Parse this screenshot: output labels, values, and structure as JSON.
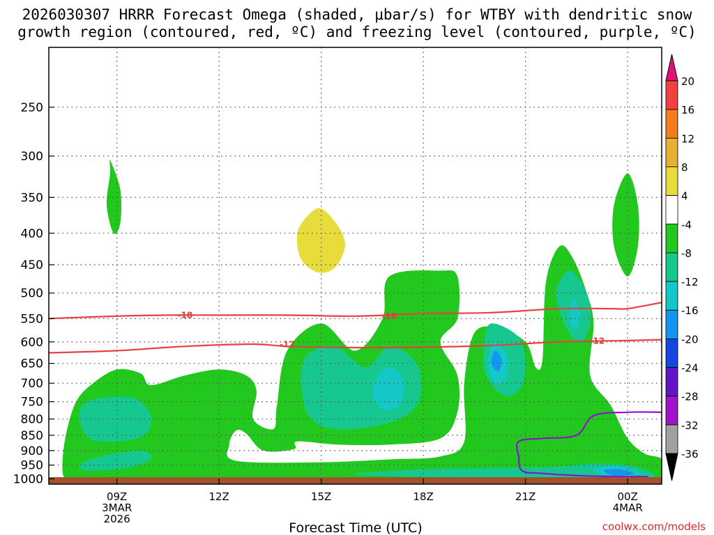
{
  "title": {
    "line1": "2026030307 HRRR Forecast Omega (shaded, μbar/s) for WTBY with dendritic snow",
    "line2": "growth region (contoured, red, ºC) and freezing level (contoured, purple, ºC)"
  },
  "credit": "coolwx.com/models",
  "chart_data": {
    "type": "time-height cross section",
    "xlabel": "Forecast Time (UTC)",
    "ylabel": "",
    "x_ticks": [
      {
        "hour": 9,
        "label": "09Z",
        "sub1": "3MAR",
        "sub2": "2026"
      },
      {
        "hour": 12,
        "label": "12Z",
        "sub1": "",
        "sub2": ""
      },
      {
        "hour": 15,
        "label": "15Z",
        "sub1": "",
        "sub2": ""
      },
      {
        "hour": 18,
        "label": "18Z",
        "sub1": "",
        "sub2": ""
      },
      {
        "hour": 21,
        "label": "21Z",
        "sub1": "",
        "sub2": ""
      },
      {
        "hour": 24,
        "label": "00Z",
        "sub1": "4MAR",
        "sub2": ""
      }
    ],
    "xlim": [
      7.0,
      25.0
    ],
    "y_ticks": [
      250,
      300,
      350,
      400,
      450,
      500,
      550,
      600,
      650,
      700,
      750,
      800,
      850,
      900,
      950,
      1000
    ],
    "ylim": [
      200,
      1020
    ],
    "y_scale": "log",
    "grid": true,
    "colorbar": {
      "levels": [
        20,
        16,
        12,
        8,
        4,
        -4,
        -8,
        -12,
        -16,
        -20,
        -24,
        -28,
        -32,
        -36
      ],
      "colors": [
        "#e0127a",
        "#f04040",
        "#f07d1e",
        "#e8b030",
        "#e8dc3c",
        "#ffffff",
        "#22c81e",
        "#16c890",
        "#14c8c8",
        "#1496f0",
        "#1446e0",
        "#6414c8",
        "#a014c8",
        "#a0a0a0",
        "#000000"
      ]
    },
    "contours": [
      {
        "name": "dgz-top",
        "label": "-18",
        "color": "#e84040",
        "points": [
          [
            7.0,
            550
          ],
          [
            9.0,
            545
          ],
          [
            10.5,
            543
          ],
          [
            12.0,
            543
          ],
          [
            14.0,
            543
          ],
          [
            16.0,
            545
          ],
          [
            18.0,
            540
          ],
          [
            20.0,
            538
          ],
          [
            22.0,
            530
          ],
          [
            23.5,
            530
          ],
          [
            24.0,
            530
          ],
          [
            25.0,
            518
          ]
        ],
        "label_at": [
          [
            11.0,
            543
          ],
          [
            17.0,
            545
          ]
        ]
      },
      {
        "name": "dgz-bottom",
        "label": "-12",
        "color": "#e84040",
        "points": [
          [
            7.0,
            625
          ],
          [
            9.0,
            620
          ],
          [
            11.0,
            610
          ],
          [
            13.0,
            605
          ],
          [
            14.0,
            610
          ],
          [
            16.0,
            613
          ],
          [
            18.0,
            612
          ],
          [
            20.0,
            608
          ],
          [
            22.0,
            600
          ],
          [
            24.0,
            597
          ],
          [
            25.0,
            595
          ]
        ],
        "label_at": [
          [
            14.0,
            606
          ],
          [
            23.1,
            598
          ]
        ]
      },
      {
        "name": "freezing-level",
        "label": "0",
        "color": "#8b14c8",
        "points": [
          [
            25.0,
            780
          ],
          [
            24.0,
            780
          ],
          [
            23.0,
            790
          ],
          [
            22.5,
            850
          ],
          [
            21.5,
            860
          ],
          [
            20.8,
            870
          ],
          [
            20.8,
            920
          ],
          [
            20.9,
            970
          ],
          [
            21.5,
            980
          ],
          [
            23.0,
            990
          ],
          [
            24.6,
            992
          ]
        ],
        "label_at": []
      }
    ],
    "omega_regions": [
      {
        "level": 4,
        "color": "#e8dc3c",
        "points": [
          [
            15.0,
            365
          ],
          [
            15.5,
            390
          ],
          [
            15.7,
            420
          ],
          [
            15.4,
            455
          ],
          [
            14.9,
            463
          ],
          [
            14.4,
            440
          ],
          [
            14.3,
            400
          ],
          [
            14.6,
            375
          ]
        ]
      },
      {
        "level": -4,
        "color": "#22c81e",
        "points": [
          [
            8.8,
            305
          ],
          [
            9.1,
            340
          ],
          [
            9.1,
            385
          ],
          [
            8.9,
            400
          ],
          [
            8.7,
            360
          ],
          [
            8.8,
            320
          ]
        ]
      },
      {
        "level": -4,
        "color": "#22c81e",
        "points": [
          [
            24.0,
            320
          ],
          [
            24.3,
            360
          ],
          [
            24.3,
            420
          ],
          [
            24.0,
            470
          ],
          [
            23.6,
            420
          ],
          [
            23.6,
            360
          ]
        ]
      },
      {
        "level": -4,
        "color": "#22c81e",
        "points": [
          [
            7.5,
            1000
          ],
          [
            7.4,
            950
          ],
          [
            7.5,
            850
          ],
          [
            7.8,
            750
          ],
          [
            8.3,
            700
          ],
          [
            9.0,
            665
          ],
          [
            9.7,
            675
          ],
          [
            10.0,
            705
          ],
          [
            11.0,
            680
          ],
          [
            12.0,
            665
          ],
          [
            12.8,
            680
          ],
          [
            13.1,
            720
          ],
          [
            13.0,
            800
          ],
          [
            13.6,
            830
          ],
          [
            13.7,
            760
          ],
          [
            14.0,
            620
          ],
          [
            15.0,
            560
          ],
          [
            16.0,
            620
          ],
          [
            16.8,
            550
          ],
          [
            17.0,
            470
          ],
          [
            18.5,
            460
          ],
          [
            19.0,
            470
          ],
          [
            19.0,
            550
          ],
          [
            18.5,
            600
          ],
          [
            19.0,
            680
          ],
          [
            19.0,
            780
          ],
          [
            18.5,
            860
          ],
          [
            17.0,
            880
          ],
          [
            15.5,
            880
          ],
          [
            14.3,
            870
          ],
          [
            14.2,
            895
          ],
          [
            13.3,
            900
          ],
          [
            12.8,
            845
          ],
          [
            12.5,
            835
          ],
          [
            12.3,
            880
          ],
          [
            12.5,
            935
          ],
          [
            15.0,
            940
          ],
          [
            17.0,
            930
          ],
          [
            18.5,
            920
          ],
          [
            19.2,
            870
          ],
          [
            19.2,
            700
          ],
          [
            19.5,
            580
          ],
          [
            20.2,
            570
          ],
          [
            21.0,
            600
          ],
          [
            21.3,
            660
          ],
          [
            21.5,
            640
          ],
          [
            21.6,
            480
          ],
          [
            22.0,
            420
          ],
          [
            22.4,
            440
          ],
          [
            22.8,
            500
          ],
          [
            23.0,
            560
          ],
          [
            22.9,
            680
          ],
          [
            23.5,
            760
          ],
          [
            24.0,
            860
          ],
          [
            24.5,
            910
          ],
          [
            25.0,
            930
          ],
          [
            25.0,
            1000
          ],
          [
            24.6,
            1000
          ],
          [
            21.5,
            1000
          ],
          [
            16.0,
            1000
          ],
          [
            12.0,
            1000
          ],
          [
            8.0,
            1000
          ]
        ]
      },
      {
        "level": -8,
        "color": "#16c890",
        "points": [
          [
            8.0,
            760
          ],
          [
            8.5,
            740
          ],
          [
            9.5,
            740
          ],
          [
            10.0,
            790
          ],
          [
            9.8,
            850
          ],
          [
            9.0,
            870
          ],
          [
            8.2,
            860
          ],
          [
            7.9,
            800
          ]
        ]
      },
      {
        "level": -8,
        "color": "#16c890",
        "points": [
          [
            7.9,
            950
          ],
          [
            8.5,
            920
          ],
          [
            9.7,
            900
          ],
          [
            10.0,
            930
          ],
          [
            9.3,
            960
          ],
          [
            8.2,
            970
          ]
        ]
      },
      {
        "level": -8,
        "color": "#16c890",
        "points": [
          [
            14.5,
            640
          ],
          [
            15.4,
            610
          ],
          [
            16.3,
            660
          ],
          [
            17.0,
            610
          ],
          [
            17.8,
            650
          ],
          [
            17.9,
            740
          ],
          [
            17.3,
            800
          ],
          [
            16.0,
            830
          ],
          [
            15.0,
            820
          ],
          [
            14.5,
            760
          ]
        ]
      },
      {
        "level": -8,
        "color": "#16c890",
        "points": [
          [
            20.0,
            560
          ],
          [
            20.8,
            590
          ],
          [
            21.0,
            660
          ],
          [
            20.8,
            720
          ],
          [
            20.3,
            730
          ],
          [
            19.8,
            670
          ],
          [
            19.8,
            600
          ]
        ]
      },
      {
        "level": -8,
        "color": "#16c890",
        "points": [
          [
            22.3,
            460
          ],
          [
            22.8,
            500
          ],
          [
            22.9,
            560
          ],
          [
            22.6,
            600
          ],
          [
            22.2,
            570
          ],
          [
            21.9,
            500
          ]
        ]
      },
      {
        "level": -8,
        "color": "#16c890",
        "points": [
          [
            16.0,
            980
          ],
          [
            18.0,
            965
          ],
          [
            20.0,
            960
          ],
          [
            22.0,
            955
          ],
          [
            23.0,
            945
          ],
          [
            24.0,
            950
          ],
          [
            24.8,
            985
          ],
          [
            24.0,
            1000
          ],
          [
            20.0,
            995
          ],
          [
            17.0,
            990
          ]
        ]
      },
      {
        "level": -12,
        "color": "#14c8c8",
        "points": [
          [
            16.9,
            660
          ],
          [
            17.4,
            690
          ],
          [
            17.3,
            760
          ],
          [
            16.8,
            770
          ],
          [
            16.5,
            720
          ]
        ]
      },
      {
        "level": -12,
        "color": "#14c8c8",
        "points": [
          [
            20.1,
            600
          ],
          [
            20.5,
            640
          ],
          [
            20.4,
            690
          ],
          [
            20.1,
            700
          ],
          [
            19.9,
            650
          ]
        ]
      },
      {
        "level": -12,
        "color": "#14c8c8",
        "points": [
          [
            22.4,
            510
          ],
          [
            22.6,
            540
          ],
          [
            22.5,
            570
          ],
          [
            22.3,
            555
          ]
        ]
      },
      {
        "level": -12,
        "color": "#14c8c8",
        "points": [
          [
            23.0,
            965
          ],
          [
            23.7,
            955
          ],
          [
            24.4,
            980
          ],
          [
            23.5,
            990
          ]
        ]
      },
      {
        "level": -16,
        "color": "#1496f0",
        "points": [
          [
            20.1,
            620
          ],
          [
            20.3,
            640
          ],
          [
            20.2,
            670
          ],
          [
            20.0,
            650
          ]
        ]
      },
      {
        "level": -16,
        "color": "#1496f0",
        "points": [
          [
            23.3,
            968
          ],
          [
            23.8,
            965
          ],
          [
            24.2,
            982
          ],
          [
            23.6,
            988
          ]
        ]
      }
    ]
  }
}
